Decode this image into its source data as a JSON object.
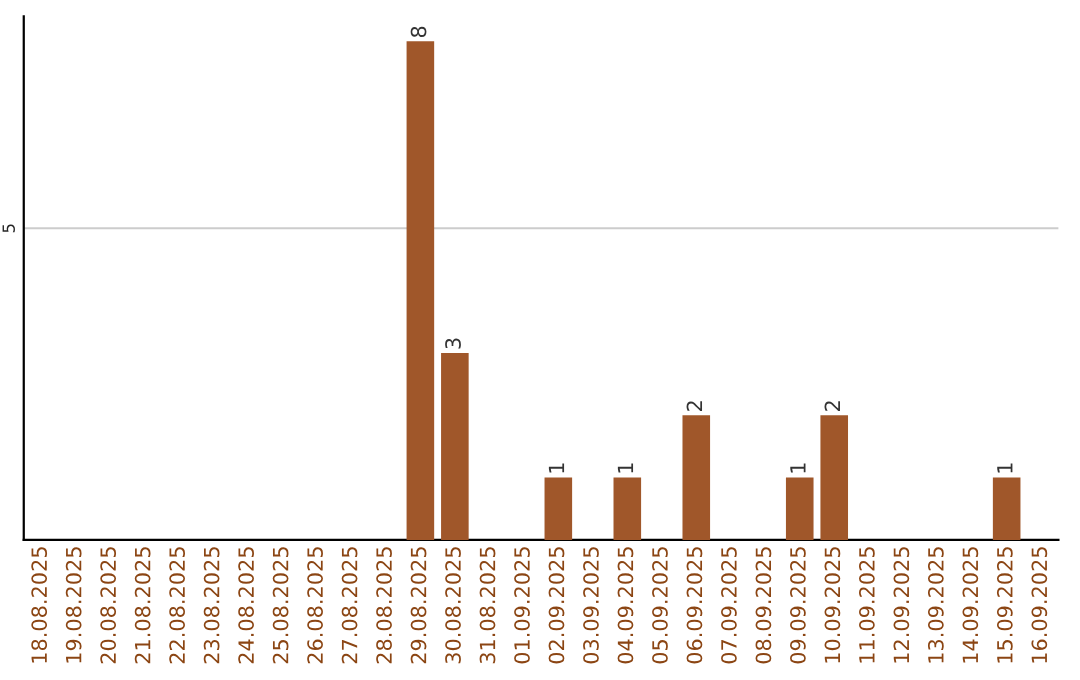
{
  "chart_data": {
    "type": "bar",
    "categories": [
      "18.08.2025",
      "19.08.2025",
      "20.08.2025",
      "21.08.2025",
      "22.08.2025",
      "23.08.2025",
      "24.08.2025",
      "25.08.2025",
      "26.08.2025",
      "27.08.2025",
      "28.08.2025",
      "29.08.2025",
      "30.08.2025",
      "31.08.2025",
      "01.09.2025",
      "02.09.2025",
      "03.09.2025",
      "04.09.2025",
      "05.09.2025",
      "06.09.2025",
      "07.09.2025",
      "08.09.2025",
      "09.09.2025",
      "10.09.2025",
      "11.09.2025",
      "12.09.2025",
      "13.09.2025",
      "14.09.2025",
      "15.09.2025",
      "16.09.2025"
    ],
    "values": [
      0,
      0,
      0,
      0,
      0,
      0,
      0,
      0,
      0,
      0,
      0,
      8,
      3,
      0,
      0,
      1,
      0,
      1,
      0,
      2,
      0,
      0,
      1,
      2,
      0,
      0,
      0,
      0,
      1,
      0
    ],
    "value_labels": [
      null,
      null,
      null,
      null,
      null,
      null,
      null,
      null,
      null,
      null,
      null,
      "8",
      "3",
      null,
      null,
      "1",
      null,
      "1",
      null,
      "2",
      null,
      null,
      "1",
      "2",
      null,
      null,
      null,
      null,
      "1",
      null
    ],
    "color": "#a0572a",
    "ylim": [
      0,
      8.4
    ],
    "yticks": [
      5
    ],
    "grid": "y"
  }
}
